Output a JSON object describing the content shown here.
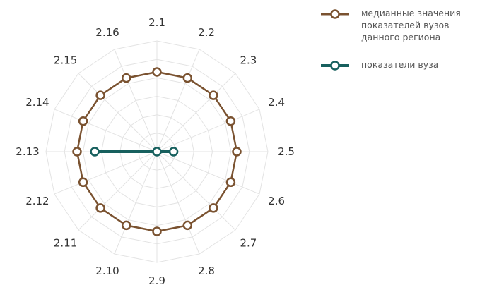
{
  "chart_data": {
    "type": "radar",
    "categories": [
      "2.1",
      "2.2",
      "2.3",
      "2.4",
      "2.5",
      "2.6",
      "2.7",
      "2.8",
      "2.9",
      "2.10",
      "2.11",
      "2.12",
      "2.13",
      "2.14",
      "2.15",
      "2.16"
    ],
    "rmax": 1.0,
    "grid_rings": 6,
    "grid": true,
    "legend_position": "top-right",
    "series": [
      {
        "name": "медианные значения показателей вузов данного региона",
        "color": "#7a5230",
        "values": [
          0.72,
          0.72,
          0.72,
          0.72,
          0.72,
          0.72,
          0.72,
          0.72,
          0.72,
          0.72,
          0.72,
          0.72,
          0.72,
          0.72,
          0.72,
          0.72
        ]
      },
      {
        "name": "показатели вуза",
        "color": "#17605e",
        "values": [
          0.0,
          0.0,
          0.0,
          0.0,
          0.15,
          0.0,
          0.0,
          0.0,
          0.0,
          0.0,
          0.0,
          0.0,
          0.56,
          0.0,
          0.0,
          0.0
        ]
      }
    ]
  }
}
